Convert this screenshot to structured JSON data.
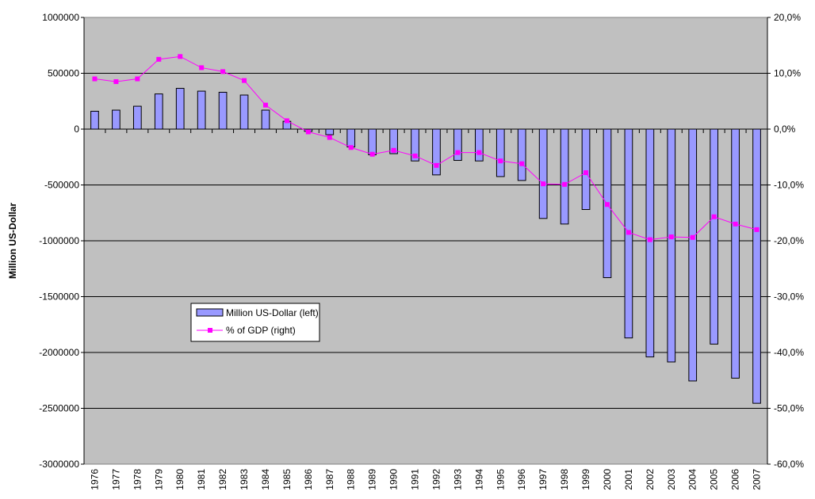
{
  "chart_data": {
    "type": "bar",
    "ylabel": "Million US-Dollar",
    "categories": [
      "1976",
      "1977",
      "1978",
      "1979",
      "1980",
      "1981",
      "1982",
      "1983",
      "1984",
      "1985",
      "1986",
      "1987",
      "1988",
      "1989",
      "1990",
      "1991",
      "1992",
      "1993",
      "1994",
      "1995",
      "1996",
      "1997",
      "1998",
      "1999",
      "2000",
      "2001",
      "2002",
      "2003",
      "2004",
      "2005",
      "2006",
      "2007"
    ],
    "ylim_left": [
      -3000000,
      1000000
    ],
    "ylim_right": [
      -60,
      20
    ],
    "left_ticks": [
      "1000000",
      "500000",
      "0",
      "-500000",
      "-1000000",
      "-1500000",
      "-2000000",
      "-2500000",
      "-3000000"
    ],
    "right_ticks": [
      "20,0%",
      "10,0%",
      "0,0%",
      "-10,0%",
      "-20,0%",
      "-30,0%",
      "-40,0%",
      "-50,0%",
      "-60,0%"
    ],
    "grid": true,
    "legend_position": "lower-left inside plot",
    "series": [
      {
        "name": "Million US-Dollar (left)",
        "type": "bar",
        "axis": "left",
        "color": "#9999ff",
        "values": [
          160000,
          170000,
          205000,
          315000,
          365000,
          340000,
          330000,
          305000,
          170000,
          70000,
          -20000,
          -50000,
          -160000,
          -230000,
          -220000,
          -285000,
          -410000,
          -280000,
          -285000,
          -425000,
          -460000,
          -800000,
          -850000,
          -720000,
          -1330000,
          -1870000,
          -2040000,
          -2085000,
          -2255000,
          -1925000,
          -2230000,
          -2455000
        ]
      },
      {
        "name": "% of GDP (right)",
        "type": "line",
        "axis": "right",
        "color": "#ff00ff",
        "values": [
          9.0,
          8.5,
          9.0,
          12.5,
          13.0,
          11.0,
          10.3,
          8.7,
          4.3,
          1.5,
          -0.5,
          -1.5,
          -3.3,
          -4.5,
          -3.8,
          -4.8,
          -6.5,
          -4.2,
          -4.2,
          -5.7,
          -6.2,
          -9.8,
          -9.9,
          -7.8,
          -13.5,
          -18.5,
          -19.8,
          -19.3,
          -19.4,
          -15.7,
          -17.0,
          -18.0
        ]
      }
    ]
  }
}
